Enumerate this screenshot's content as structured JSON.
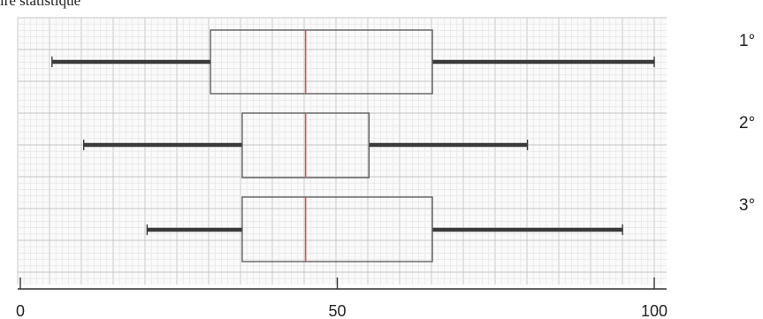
{
  "caption": "ire statistique",
  "chart_data": {
    "type": "boxplot",
    "orientation": "horizontal",
    "xlim": [
      0,
      105
    ],
    "xticks": [
      0,
      50,
      100
    ],
    "xticklabels": [
      "0",
      "50",
      "100"
    ],
    "grid": true,
    "median_color": "#e05050",
    "series": [
      {
        "name": "1°",
        "min": 5,
        "q1": 30,
        "median": 45,
        "q3": 65,
        "max": 100
      },
      {
        "name": "2°",
        "min": 10,
        "q1": 35,
        "median": 45,
        "q3": 55,
        "max": 80
      },
      {
        "name": "3°",
        "min": 20,
        "q1": 35,
        "median": 45,
        "q3": 65,
        "max": 95
      }
    ]
  }
}
